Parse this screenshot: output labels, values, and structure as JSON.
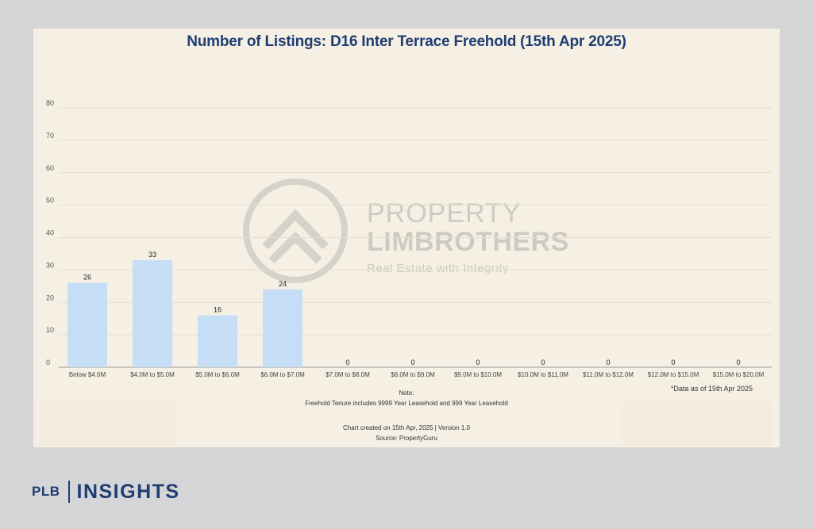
{
  "chart_data": {
    "type": "bar",
    "title": "Number of Listings: D16 Inter Terrace Freehold (15th Apr 2025)",
    "categories": [
      "Below $4.0M",
      "$4.0M to $5.0M",
      "$5.0M to $6.0M",
      "$6.0M to $7.0M",
      "$7.0M to $8.0M",
      "$8.0M to $9.0M",
      "$9.0M to $10.0M",
      "$10.0M to $11.0M",
      "$11.0M to $12.0M",
      "$12.0M to $15.0M",
      "$15.0M to $20.0M"
    ],
    "values": [
      26,
      33,
      16,
      24,
      0,
      0,
      0,
      0,
      0,
      0,
      0
    ],
    "ylim": [
      0,
      80
    ],
    "yticks": [
      0,
      10,
      20,
      30,
      40,
      50,
      60,
      70,
      80
    ],
    "grid": true,
    "bar_color": "#c5def5"
  },
  "notes": {
    "asof": "*Data as of 15th Apr 2025",
    "note_heading": "Note:",
    "note_body": "Freehold Tenure includes 9999 Year Leasehold and 999 Year Leasehold",
    "created": "Chart created on 15th Apr, 2025 | Version 1.0",
    "source": "Source: PropertyGuru"
  },
  "watermark": {
    "line1": "PROPERTY",
    "line2": "LIMBROTHERS",
    "line3": "Real Estate with Integrity"
  },
  "brand": {
    "plb": "PLB",
    "insights": "INSIGHTS",
    "color": "#1f3d73"
  }
}
